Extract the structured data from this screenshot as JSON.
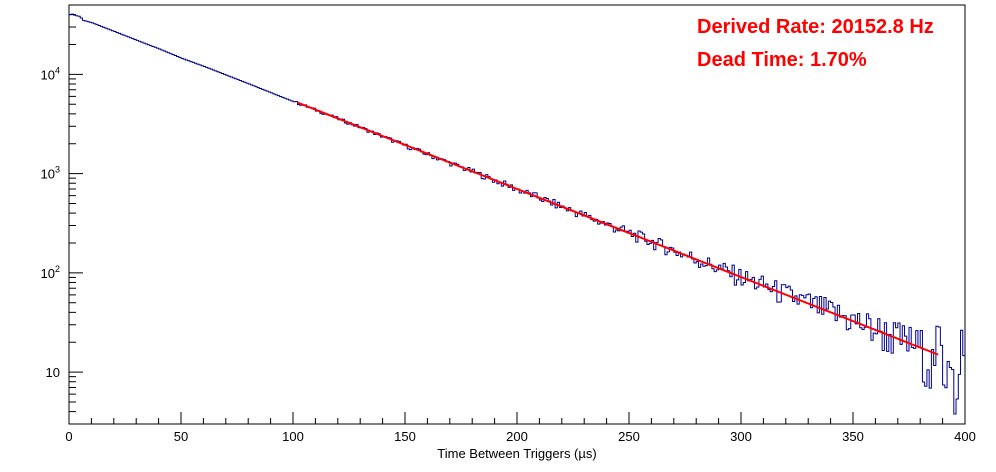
{
  "chart_data": {
    "type": "line",
    "xlabel": "Time Between Triggers (µs)",
    "ylabel": "",
    "xlim": [
      0,
      400
    ],
    "ylim": [
      3,
      50000
    ],
    "yscale": "log",
    "grid": false,
    "x_ticks": [
      "0",
      "50",
      "100",
      "150",
      "200",
      "250",
      "300",
      "350",
      "400"
    ],
    "y_ticks": [
      {
        "value": 10,
        "label": "10",
        "exp": ""
      },
      {
        "value": 100,
        "label": "10",
        "exp": "2"
      },
      {
        "value": 1000,
        "label": "10",
        "exp": "3"
      },
      {
        "value": 10000,
        "label": "10",
        "exp": "4"
      }
    ],
    "annotations": [
      "Derived Rate: 20152.8 Hz",
      "Dead Time: 1.70%"
    ],
    "series": [
      {
        "style": "histogram",
        "color": "#00008b",
        "bin_width": 1,
        "x": [
          0,
          1,
          2,
          3,
          4,
          5,
          6,
          7,
          8,
          10,
          20,
          30,
          40,
          50,
          60,
          70,
          80,
          90,
          100,
          110,
          120,
          130,
          140,
          150,
          160,
          170,
          180,
          190,
          200,
          210,
          220,
          230,
          240,
          250,
          260,
          270,
          280,
          290,
          300,
          310,
          320,
          330,
          340,
          350,
          360,
          370,
          380,
          385,
          388,
          390,
          392,
          394,
          396,
          398,
          399
        ],
        "values": [
          40000,
          40500,
          39500,
          39000,
          38500,
          37000,
          35000,
          34500,
          34000,
          33000,
          27000,
          22000,
          18000,
          14500,
          12000,
          9800,
          8000,
          6500,
          5300,
          4350,
          3550,
          2900,
          2350,
          1900,
          1550,
          1270,
          1040,
          850,
          690,
          565,
          460,
          375,
          305,
          250,
          205,
          167,
          136,
          111,
          90,
          74,
          60,
          49,
          40,
          33,
          27,
          22,
          18,
          12,
          25,
          7,
          18,
          15,
          4,
          20,
          11
        ]
      },
      {
        "style": "fit",
        "color": "#ff0000",
        "x": [
          102,
          388
        ],
        "values": [
          5200,
          15
        ]
      }
    ]
  }
}
